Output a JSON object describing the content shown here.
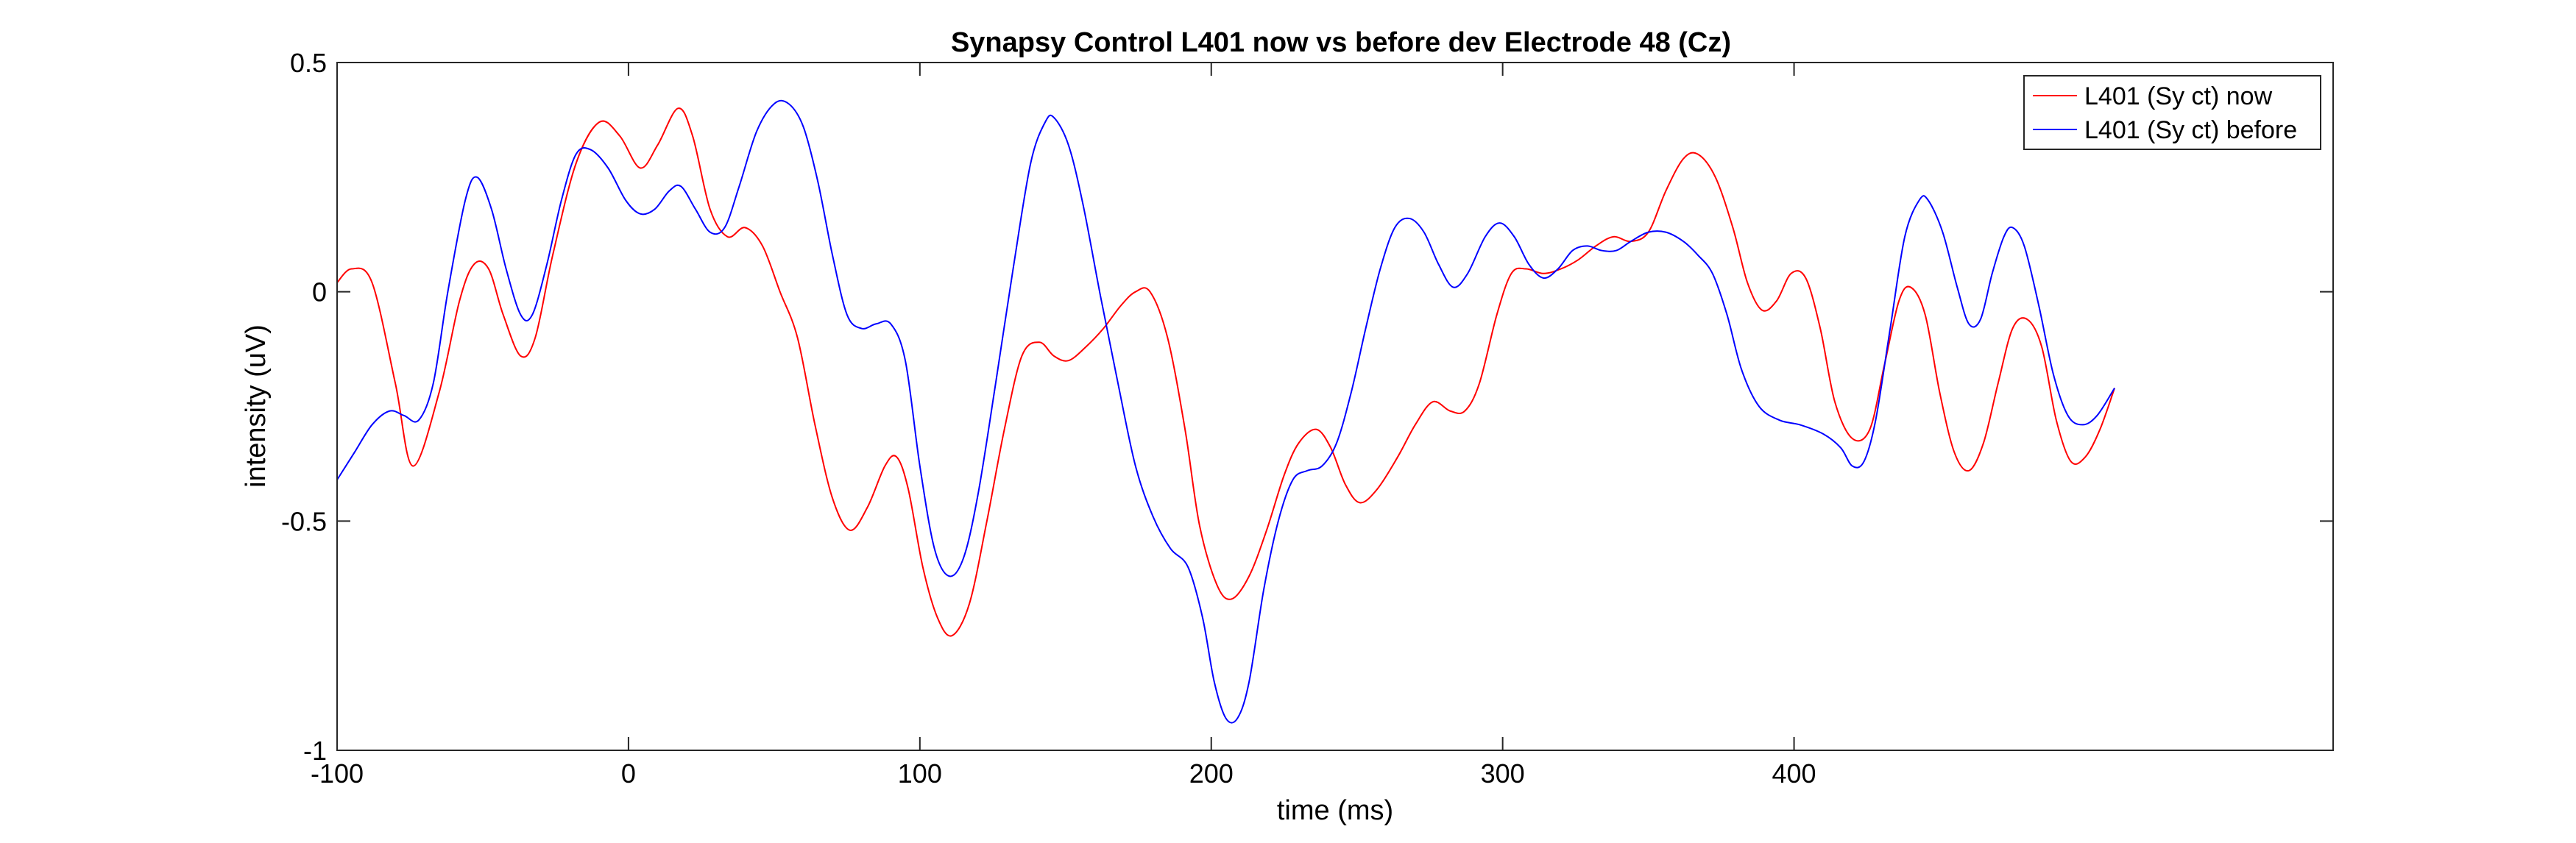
{
  "chart_data": {
    "type": "line",
    "title": "Synapsy Control L401 now vs before dev Electrode 48 (Cz)",
    "xlabel": "time (ms)",
    "ylabel": "intensity (uV)",
    "xlim": [
      -100,
      585
    ],
    "ylim": [
      -1,
      0.5
    ],
    "xticks": [
      -100,
      0,
      100,
      200,
      300,
      400
    ],
    "xtick_labels": [
      "-100",
      "0",
      "100",
      "200",
      "300",
      "400"
    ],
    "yticks": [
      -1,
      -0.5,
      0,
      0.5
    ],
    "ytick_labels": [
      "-1",
      "-0.5",
      "0",
      "0.5"
    ],
    "grid": false,
    "legend_position": "top-right",
    "series": [
      {
        "name": "L401 (Sy ct) now",
        "color": "#ff0000",
        "points": [
          [
            -100,
            0.02
          ],
          [
            -95,
            0.05
          ],
          [
            -88,
            0.02
          ],
          [
            -80,
            -0.2
          ],
          [
            -74,
            -0.38
          ],
          [
            -65,
            -0.22
          ],
          [
            -58,
            -0.02
          ],
          [
            -53,
            0.06
          ],
          [
            -48,
            0.05
          ],
          [
            -43,
            -0.05
          ],
          [
            -37,
            -0.14
          ],
          [
            -32,
            -0.1
          ],
          [
            -26,
            0.08
          ],
          [
            -18,
            0.28
          ],
          [
            -10,
            0.37
          ],
          [
            -3,
            0.34
          ],
          [
            4,
            0.27
          ],
          [
            10,
            0.32
          ],
          [
            17,
            0.4
          ],
          [
            22,
            0.34
          ],
          [
            28,
            0.18
          ],
          [
            34,
            0.12
          ],
          [
            40,
            0.14
          ],
          [
            46,
            0.1
          ],
          [
            52,
            0.0
          ],
          [
            58,
            -0.1
          ],
          [
            64,
            -0.29
          ],
          [
            70,
            -0.45
          ],
          [
            76,
            -0.52
          ],
          [
            82,
            -0.47
          ],
          [
            88,
            -0.38
          ],
          [
            92,
            -0.36
          ],
          [
            96,
            -0.43
          ],
          [
            101,
            -0.6
          ],
          [
            106,
            -0.71
          ],
          [
            111,
            -0.75
          ],
          [
            117,
            -0.68
          ],
          [
            123,
            -0.5
          ],
          [
            129,
            -0.3
          ],
          [
            135,
            -0.14
          ],
          [
            141,
            -0.11
          ],
          [
            146,
            -0.14
          ],
          [
            151,
            -0.15
          ],
          [
            157,
            -0.12
          ],
          [
            163,
            -0.08
          ],
          [
            169,
            -0.03
          ],
          [
            174,
            0.0
          ],
          [
            179,
            0.0
          ],
          [
            185,
            -0.1
          ],
          [
            191,
            -0.3
          ],
          [
            196,
            -0.51
          ],
          [
            202,
            -0.64
          ],
          [
            207,
            -0.67
          ],
          [
            213,
            -0.62
          ],
          [
            219,
            -0.52
          ],
          [
            225,
            -0.4
          ],
          [
            230,
            -0.33
          ],
          [
            236,
            -0.3
          ],
          [
            241,
            -0.34
          ],
          [
            246,
            -0.42
          ],
          [
            251,
            -0.46
          ],
          [
            257,
            -0.43
          ],
          [
            264,
            -0.36
          ],
          [
            270,
            -0.29
          ],
          [
            276,
            -0.24
          ],
          [
            282,
            -0.26
          ],
          [
            287,
            -0.26
          ],
          [
            292,
            -0.2
          ],
          [
            298,
            -0.05
          ],
          [
            303,
            0.04
          ],
          [
            308,
            0.05
          ],
          [
            314,
            0.04
          ],
          [
            320,
            0.05
          ],
          [
            326,
            0.07
          ],
          [
            332,
            0.1
          ],
          [
            338,
            0.12
          ],
          [
            344,
            0.11
          ],
          [
            350,
            0.13
          ],
          [
            356,
            0.22
          ],
          [
            362,
            0.29
          ],
          [
            367,
            0.3
          ],
          [
            373,
            0.25
          ],
          [
            379,
            0.14
          ],
          [
            384,
            0.02
          ],
          [
            389,
            -0.04
          ],
          [
            394,
            -0.02
          ],
          [
            399,
            0.04
          ],
          [
            404,
            0.03
          ],
          [
            409,
            -0.08
          ],
          [
            414,
            -0.24
          ],
          [
            420,
            -0.32
          ],
          [
            426,
            -0.3
          ],
          [
            431,
            -0.16
          ],
          [
            436,
            -0.02
          ],
          [
            440,
            0.01
          ],
          [
            445,
            -0.05
          ],
          [
            450,
            -0.22
          ],
          [
            455,
            -0.35
          ],
          [
            460,
            -0.39
          ],
          [
            465,
            -0.33
          ],
          [
            470,
            -0.2
          ],
          [
            475,
            -0.08
          ],
          [
            480,
            -0.06
          ],
          [
            485,
            -0.12
          ],
          [
            490,
            -0.28
          ],
          [
            495,
            -0.37
          ],
          [
            500,
            -0.36
          ],
          [
            505,
            -0.3
          ],
          [
            510,
            -0.21
          ]
        ]
      },
      {
        "name": "L401 (Sy ct) before",
        "color": "#0000ff",
        "points": [
          [
            -100,
            -0.41
          ],
          [
            -94,
            -0.35
          ],
          [
            -88,
            -0.29
          ],
          [
            -82,
            -0.26
          ],
          [
            -77,
            -0.27
          ],
          [
            -72,
            -0.28
          ],
          [
            -67,
            -0.2
          ],
          [
            -62,
            0.0
          ],
          [
            -56,
            0.2
          ],
          [
            -52,
            0.25
          ],
          [
            -47,
            0.18
          ],
          [
            -42,
            0.05
          ],
          [
            -37,
            -0.05
          ],
          [
            -33,
            -0.05
          ],
          [
            -28,
            0.06
          ],
          [
            -23,
            0.2
          ],
          [
            -18,
            0.3
          ],
          [
            -13,
            0.31
          ],
          [
            -7,
            0.27
          ],
          [
            -1,
            0.2
          ],
          [
            4,
            0.17
          ],
          [
            9,
            0.18
          ],
          [
            14,
            0.22
          ],
          [
            18,
            0.23
          ],
          [
            23,
            0.18
          ],
          [
            28,
            0.13
          ],
          [
            33,
            0.14
          ],
          [
            38,
            0.23
          ],
          [
            44,
            0.35
          ],
          [
            50,
            0.41
          ],
          [
            55,
            0.41
          ],
          [
            60,
            0.36
          ],
          [
            65,
            0.24
          ],
          [
            70,
            0.08
          ],
          [
            75,
            -0.05
          ],
          [
            80,
            -0.08
          ],
          [
            85,
            -0.07
          ],
          [
            90,
            -0.07
          ],
          [
            95,
            -0.15
          ],
          [
            100,
            -0.38
          ],
          [
            105,
            -0.56
          ],
          [
            110,
            -0.62
          ],
          [
            115,
            -0.58
          ],
          [
            120,
            -0.44
          ],
          [
            126,
            -0.2
          ],
          [
            132,
            0.05
          ],
          [
            138,
            0.28
          ],
          [
            143,
            0.37
          ],
          [
            146,
            0.38
          ],
          [
            151,
            0.32
          ],
          [
            156,
            0.19
          ],
          [
            162,
            -0.01
          ],
          [
            168,
            -0.2
          ],
          [
            174,
            -0.38
          ],
          [
            180,
            -0.49
          ],
          [
            186,
            -0.56
          ],
          [
            192,
            -0.6
          ],
          [
            197,
            -0.71
          ],
          [
            201,
            -0.85
          ],
          [
            205,
            -0.93
          ],
          [
            209,
            -0.93
          ],
          [
            213,
            -0.85
          ],
          [
            218,
            -0.65
          ],
          [
            223,
            -0.5
          ],
          [
            228,
            -0.41
          ],
          [
            233,
            -0.39
          ],
          [
            238,
            -0.38
          ],
          [
            243,
            -0.33
          ],
          [
            248,
            -0.22
          ],
          [
            253,
            -0.08
          ],
          [
            258,
            0.05
          ],
          [
            263,
            0.14
          ],
          [
            268,
            0.16
          ],
          [
            273,
            0.13
          ],
          [
            278,
            0.06
          ],
          [
            283,
            0.01
          ],
          [
            288,
            0.04
          ],
          [
            294,
            0.12
          ],
          [
            299,
            0.15
          ],
          [
            304,
            0.12
          ],
          [
            309,
            0.06
          ],
          [
            314,
            0.03
          ],
          [
            319,
            0.05
          ],
          [
            324,
            0.09
          ],
          [
            329,
            0.1
          ],
          [
            334,
            0.09
          ],
          [
            339,
            0.09
          ],
          [
            344,
            0.11
          ],
          [
            350,
            0.13
          ],
          [
            356,
            0.13
          ],
          [
            362,
            0.11
          ],
          [
            367,
            0.08
          ],
          [
            372,
            0.04
          ],
          [
            377,
            -0.05
          ],
          [
            382,
            -0.17
          ],
          [
            388,
            -0.25
          ],
          [
            395,
            -0.28
          ],
          [
            402,
            -0.29
          ],
          [
            410,
            -0.31
          ],
          [
            416,
            -0.34
          ],
          [
            420,
            -0.38
          ],
          [
            424,
            -0.37
          ],
          [
            428,
            -0.28
          ],
          [
            433,
            -0.08
          ],
          [
            438,
            0.12
          ],
          [
            443,
            0.2
          ],
          [
            446,
            0.2
          ],
          [
            451,
            0.13
          ],
          [
            456,
            0.01
          ],
          [
            460,
            -0.07
          ],
          [
            464,
            -0.06
          ],
          [
            468,
            0.04
          ],
          [
            472,
            0.12
          ],
          [
            475,
            0.14
          ],
          [
            479,
            0.1
          ],
          [
            484,
            -0.03
          ],
          [
            489,
            -0.18
          ],
          [
            494,
            -0.27
          ],
          [
            499,
            -0.29
          ],
          [
            504,
            -0.27
          ],
          [
            510,
            -0.21
          ]
        ]
      }
    ]
  }
}
